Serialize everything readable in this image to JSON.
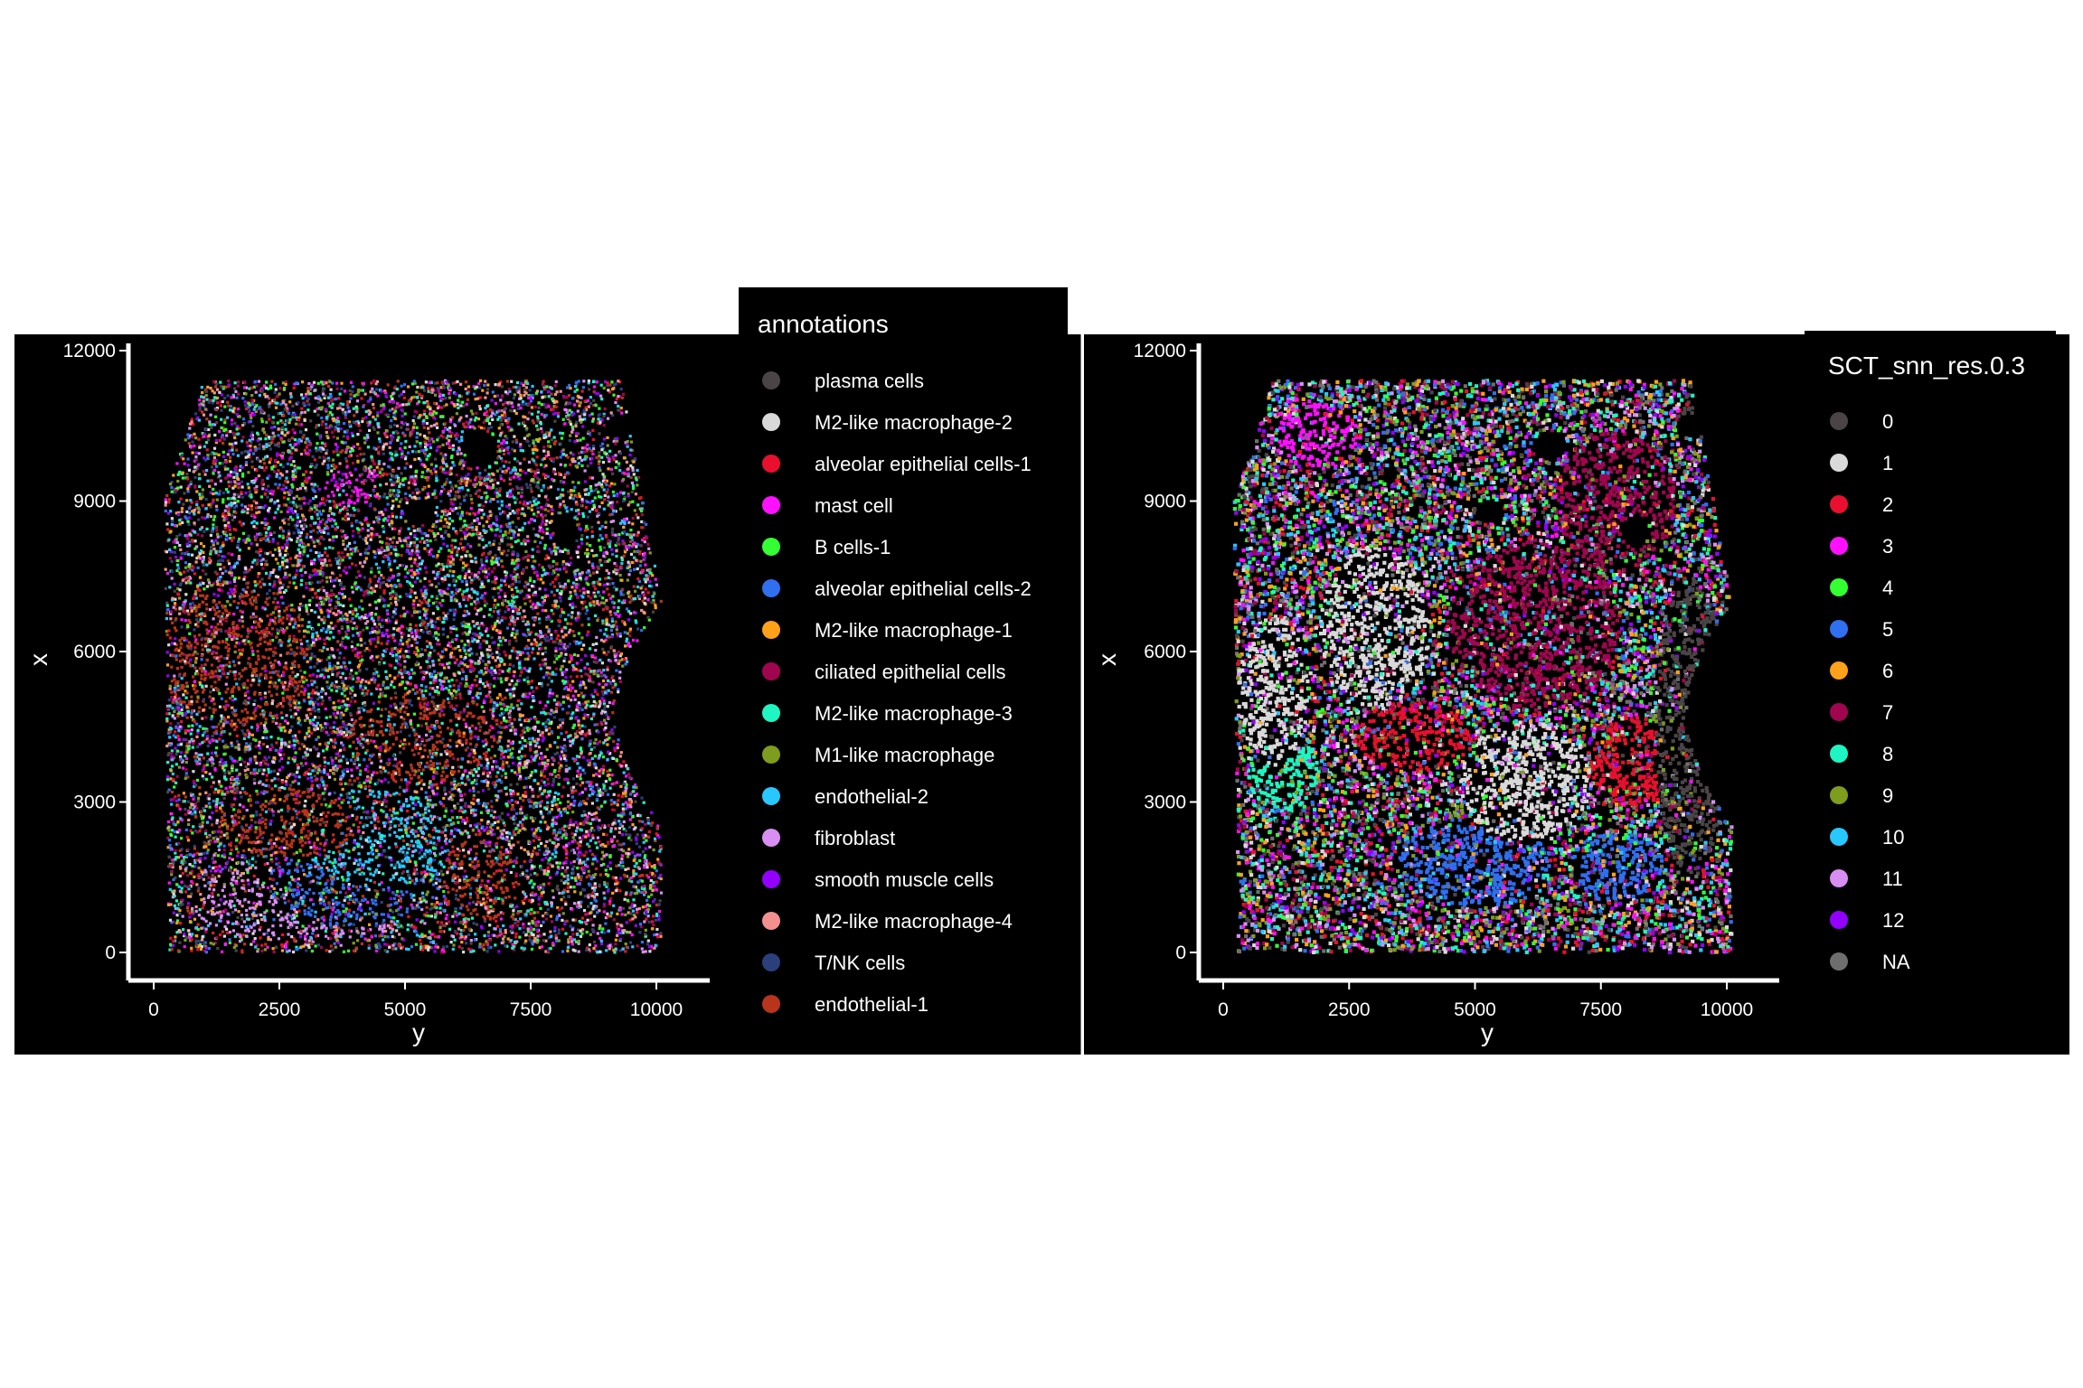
{
  "chart_data": [
    {
      "type": "scatter",
      "title": "",
      "xlabel": "y",
      "ylabel": "x",
      "xlim": [
        -500,
        11200
      ],
      "ylim": [
        -600,
        12100
      ],
      "x_ticks": [
        0,
        2500,
        5000,
        7500,
        10000
      ],
      "y_ticks": [
        0,
        3000,
        6000,
        9000,
        12000
      ],
      "x_tick_labels": [
        "0",
        "2500",
        "5000",
        "7500",
        "10000"
      ],
      "y_tick_labels": [
        "0",
        "3000",
        "6000",
        "9000",
        "12000"
      ],
      "background": "#000000",
      "grid": false,
      "legend": {
        "title": "annotations",
        "placement": "right",
        "entries": [
          {
            "label": "plasma cells",
            "color": "#4a4446"
          },
          {
            "label": "M2-like macrophage-2",
            "color": "#d9d9d9"
          },
          {
            "label": "alveolar epithelial cells-1",
            "color": "#e8102e"
          },
          {
            "label": "mast cell",
            "color": "#ff10ff"
          },
          {
            "label": "B cells-1",
            "color": "#33ff33"
          },
          {
            "label": "alveolar epithelial cells-2",
            "color": "#2f6ff0"
          },
          {
            "label": "M2-like macrophage-1",
            "color": "#ffa11a"
          },
          {
            "label": "ciliated epithelial cells",
            "color": "#a0064f"
          },
          {
            "label": "M2-like macrophage-3",
            "color": "#1ff5c2"
          },
          {
            "label": "M1-like macrophage",
            "color": "#7e9c1e"
          },
          {
            "label": "endothelial-2",
            "color": "#28c7ff"
          },
          {
            "label": "fibroblast",
            "color": "#d88ef2"
          },
          {
            "label": "smooth muscle cells",
            "color": "#9300ff"
          },
          {
            "label": "M2-like macrophage-4",
            "color": "#f29090"
          },
          {
            "label": "T/NK cells",
            "color": "#2a3f7c"
          },
          {
            "label": "endothelial-1",
            "color": "#b8341a"
          }
        ]
      },
      "regions": [
        {
          "category": "endothelial-1",
          "x": 1700,
          "y": 5900,
          "rx": 1400,
          "ry": 1500
        },
        {
          "category": "endothelial-1",
          "x": 5400,
          "y": 4300,
          "rx": 1500,
          "ry": 900
        },
        {
          "category": "endothelial-1",
          "x": 2600,
          "y": 2600,
          "rx": 1500,
          "ry": 700
        },
        {
          "category": "endothelial-1",
          "x": 6500,
          "y": 1500,
          "rx": 800,
          "ry": 900
        },
        {
          "category": "endothelial-2",
          "x": 4500,
          "y": 2300,
          "rx": 1500,
          "ry": 1000
        },
        {
          "category": "alveolar epithelial cells-2",
          "x": 4000,
          "y": 1400,
          "rx": 1700,
          "ry": 900
        },
        {
          "category": "fibroblast",
          "x": 3000,
          "y": 1000,
          "rx": 2300,
          "ry": 800
        },
        {
          "category": "mast cell",
          "x": 4000,
          "y": 9300,
          "rx": 600,
          "ry": 400
        }
      ]
    },
    {
      "type": "scatter",
      "title": "",
      "xlabel": "y",
      "ylabel": "x",
      "xlim": [
        -500,
        11200
      ],
      "ylim": [
        -600,
        12100
      ],
      "x_ticks": [
        0,
        2500,
        5000,
        7500,
        10000
      ],
      "y_ticks": [
        0,
        3000,
        6000,
        9000,
        12000
      ],
      "x_tick_labels": [
        "0",
        "2500",
        "5000",
        "7500",
        "10000"
      ],
      "y_tick_labels": [
        "0",
        "3000",
        "6000",
        "9000",
        "12000"
      ],
      "background": "#000000",
      "grid": false,
      "legend": {
        "title": "SCT_snn_res.0.3",
        "placement": "right",
        "entries": [
          {
            "label": "0",
            "color": "#4a4446"
          },
          {
            "label": "1",
            "color": "#d9d9d9"
          },
          {
            "label": "2",
            "color": "#e8102e"
          },
          {
            "label": "3",
            "color": "#ff10ff"
          },
          {
            "label": "4",
            "color": "#33ff33"
          },
          {
            "label": "5",
            "color": "#2f6ff0"
          },
          {
            "label": "6",
            "color": "#ffa11a"
          },
          {
            "label": "7",
            "color": "#a0064f"
          },
          {
            "label": "8",
            "color": "#1ff5c2"
          },
          {
            "label": "9",
            "color": "#7e9c1e"
          },
          {
            "label": "10",
            "color": "#28c7ff"
          },
          {
            "label": "11",
            "color": "#d88ef2"
          },
          {
            "label": "12",
            "color": "#9300ff"
          },
          {
            "label": "NA",
            "color": "#6e6e6e"
          }
        ]
      },
      "regions": [
        {
          "category": "1",
          "x": 3000,
          "y": 6500,
          "rx": 1100,
          "ry": 1600
        },
        {
          "category": "1",
          "x": 1000,
          "y": 5200,
          "rx": 700,
          "ry": 1500
        },
        {
          "category": "1",
          "x": 6000,
          "y": 3400,
          "rx": 1300,
          "ry": 1200
        },
        {
          "category": "7",
          "x": 6200,
          "y": 6500,
          "rx": 1700,
          "ry": 1700
        },
        {
          "category": "7",
          "x": 7800,
          "y": 9000,
          "rx": 1200,
          "ry": 1400
        },
        {
          "category": "5",
          "x": 5000,
          "y": 1800,
          "rx": 1500,
          "ry": 900
        },
        {
          "category": "5",
          "x": 7800,
          "y": 1700,
          "rx": 900,
          "ry": 700
        },
        {
          "category": "9",
          "x": 5200,
          "y": 2600,
          "rx": 800,
          "ry": 500
        },
        {
          "category": "0",
          "x": 9300,
          "y": 4500,
          "rx": 700,
          "ry": 3000
        },
        {
          "category": "0",
          "x": 9700,
          "y": 10800,
          "rx": 600,
          "ry": 500
        },
        {
          "category": "2",
          "x": 3800,
          "y": 4300,
          "rx": 1200,
          "ry": 700
        },
        {
          "category": "2",
          "x": 8200,
          "y": 3800,
          "rx": 900,
          "ry": 900
        },
        {
          "category": "8",
          "x": 1200,
          "y": 3600,
          "rx": 700,
          "ry": 800
        },
        {
          "category": "3",
          "x": 1900,
          "y": 10300,
          "rx": 800,
          "ry": 700
        }
      ]
    }
  ]
}
